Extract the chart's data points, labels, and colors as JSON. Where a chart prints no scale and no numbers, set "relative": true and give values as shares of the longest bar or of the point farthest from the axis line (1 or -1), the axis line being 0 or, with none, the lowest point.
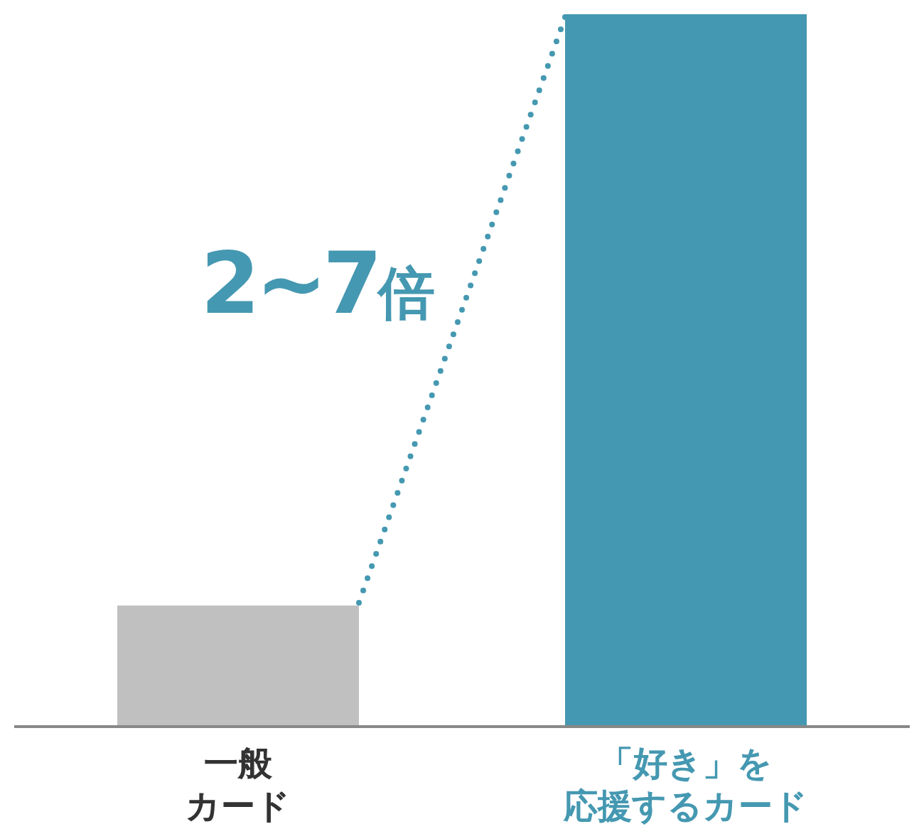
{
  "chart_data": {
    "type": "bar",
    "relative": true,
    "categories": [
      "一般カード",
      "「好き」を応援するカード"
    ],
    "values": [
      0.17,
      1
    ],
    "colors": [
      "#c0c0c0",
      "#4598b1"
    ],
    "annotations": [
      "2~7倍"
    ]
  }
}
